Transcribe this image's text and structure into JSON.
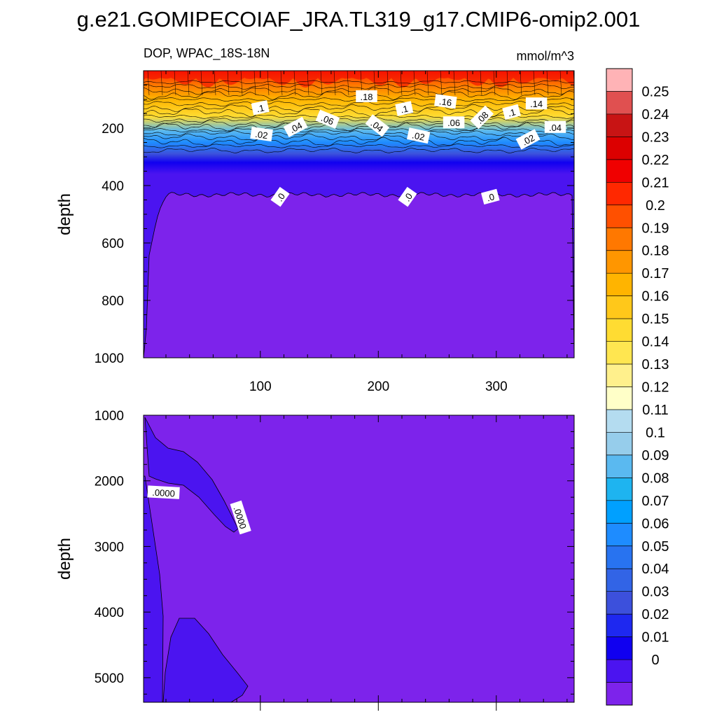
{
  "title": "g.e21.GOMIPECOIAF_JRA.TL319_g17.CMIP6-omip2.001",
  "chart_data": [
    {
      "type": "heatmap",
      "panel": "top",
      "left_string": "DOP, WPAC_18S-18N",
      "right_string": "mmol/m^3",
      "ylabel": "depth",
      "xlim": [
        1,
        366
      ],
      "ylim": [
        1000,
        0
      ],
      "x_ticks": [
        100,
        200,
        300
      ],
      "y_ticks": [
        200,
        400,
        600,
        800,
        1000
      ],
      "contour_labels": [
        {
          "text": ".1",
          "x": 100,
          "y": 130,
          "angle": -12
        },
        {
          "text": ".18",
          "x": 190,
          "y": 90,
          "angle": 0
        },
        {
          "text": ".1",
          "x": 222,
          "y": 133,
          "angle": -12
        },
        {
          "text": ".16",
          "x": 257,
          "y": 108,
          "angle": 8
        },
        {
          "text": ".1",
          "x": 313,
          "y": 145,
          "angle": -15
        },
        {
          "text": ".14",
          "x": 334,
          "y": 115,
          "angle": 0
        },
        {
          "text": ".02",
          "x": 101,
          "y": 222,
          "angle": 8
        },
        {
          "text": ".04",
          "x": 130,
          "y": 197,
          "angle": -28
        },
        {
          "text": ".06",
          "x": 157,
          "y": 170,
          "angle": 22
        },
        {
          "text": ".04",
          "x": 199,
          "y": 192,
          "angle": 38
        },
        {
          "text": ".06",
          "x": 264,
          "y": 181,
          "angle": 0
        },
        {
          "text": ".08",
          "x": 288,
          "y": 163,
          "angle": -45
        },
        {
          "text": ".02",
          "x": 234,
          "y": 227,
          "angle": 12
        },
        {
          "text": ".02",
          "x": 327,
          "y": 240,
          "angle": -28
        },
        {
          "text": ".04",
          "x": 350,
          "y": 197,
          "angle": 0
        },
        {
          "text": ".0",
          "x": 117,
          "y": 440,
          "angle": -55
        },
        {
          "text": ".0",
          "x": 225,
          "y": 440,
          "angle": -55
        },
        {
          "text": ".0",
          "x": 295,
          "y": 440,
          "angle": -15
        }
      ]
    },
    {
      "type": "heatmap",
      "panel": "bottom",
      "ylabel": "depth",
      "xlim": [
        1,
        366
      ],
      "ylim": [
        1000,
        5375
      ],
      "y_ticks": [
        1000,
        2000,
        3000,
        4000,
        5000
      ],
      "contour_labels": [
        {
          "text": ".0000",
          "x": 18,
          "y": 2180,
          "angle": 3
        },
        {
          "text": ".0000",
          "x": 83,
          "y": 2560,
          "angle": 72
        }
      ]
    }
  ],
  "colorbar": {
    "labels": [
      "0.25",
      "0.24",
      "0.23",
      "0.22",
      "0.21",
      "0.2",
      "0.19",
      "0.18",
      "0.17",
      "0.16",
      "0.15",
      "0.14",
      "0.13",
      "0.12",
      "0.11",
      "0.1",
      "0.09",
      "0.08",
      "0.07",
      "0.06",
      "0.05",
      "0.04",
      "0.03",
      "0.02",
      "0.01",
      "0"
    ],
    "colors": [
      "#ffb3b6",
      "#e05050",
      "#c81414",
      "#dc0000",
      "#f00000",
      "#ff2800",
      "#ff5000",
      "#ff7800",
      "#ff9600",
      "#ffb400",
      "#ffc81a",
      "#ffdc32",
      "#ffe650",
      "#fff08c",
      "#ffffc8",
      "#b4dcf0",
      "#96cdeb",
      "#5ab9f0",
      "#1eb4f0",
      "#00a0ff",
      "#1e8cff",
      "#2873f0",
      "#3264e6",
      "#3c50dc",
      "#1e28f0",
      "#1000f0",
      "#4b14f0",
      "#7d23eb"
    ]
  }
}
